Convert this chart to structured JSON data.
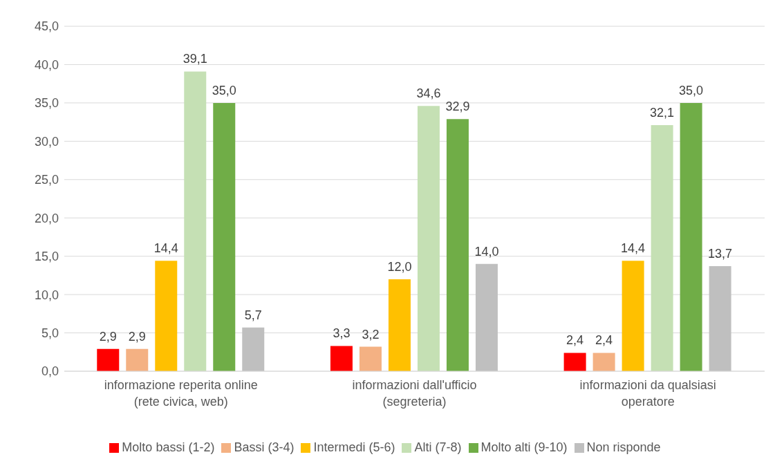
{
  "chart_data": {
    "type": "bar",
    "categories": [
      "informazione reperita online (rete civica, web)",
      "informazioni dall'ufficio (segreteria)",
      "informazioni da qualsiasi operatore"
    ],
    "series": [
      {
        "name": "Molto bassi (1-2)",
        "color": "#ff0000",
        "values": [
          2.9,
          3.3,
          2.4
        ],
        "value_labels": [
          "2,9",
          "3,3",
          "2,4"
        ]
      },
      {
        "name": "Bassi (3-4)",
        "color": "#f4b183",
        "values": [
          2.9,
          3.2,
          2.4
        ],
        "value_labels": [
          "2,9",
          "3,2",
          "2,4"
        ]
      },
      {
        "name": "Intermedi (5-6)",
        "color": "#ffc000",
        "values": [
          14.4,
          12.0,
          14.4
        ],
        "value_labels": [
          "14,4",
          "12,0",
          "14,4"
        ]
      },
      {
        "name": "Alti (7-8)",
        "color": "#c5e0b4",
        "values": [
          39.1,
          34.6,
          32.1
        ],
        "value_labels": [
          "39,1",
          "34,6",
          "32,1"
        ]
      },
      {
        "name": "Molto alti (9-10)",
        "color": "#70ad47",
        "values": [
          35.0,
          32.9,
          35.0
        ],
        "value_labels": [
          "35,0",
          "32,9",
          "35,0"
        ]
      },
      {
        "name": "Non risponde",
        "color": "#bfbfbf",
        "values": [
          5.7,
          14.0,
          13.7
        ],
        "value_labels": [
          "5,7",
          "14,0",
          "13,7"
        ]
      }
    ],
    "ylim": [
      0,
      45
    ],
    "yticks": [
      {
        "value": 0,
        "label": "0,0"
      },
      {
        "value": 5,
        "label": "5,0"
      },
      {
        "value": 10,
        "label": "10,0"
      },
      {
        "value": 15,
        "label": "15,0"
      },
      {
        "value": 20,
        "label": "20,0"
      },
      {
        "value": 25,
        "label": "25,0"
      },
      {
        "value": 30,
        "label": "30,0"
      },
      {
        "value": 35,
        "label": "35,0"
      },
      {
        "value": 40,
        "label": "40,0"
      },
      {
        "value": 45,
        "label": "45,0"
      }
    ],
    "grid": "y",
    "legend": "bottom"
  }
}
